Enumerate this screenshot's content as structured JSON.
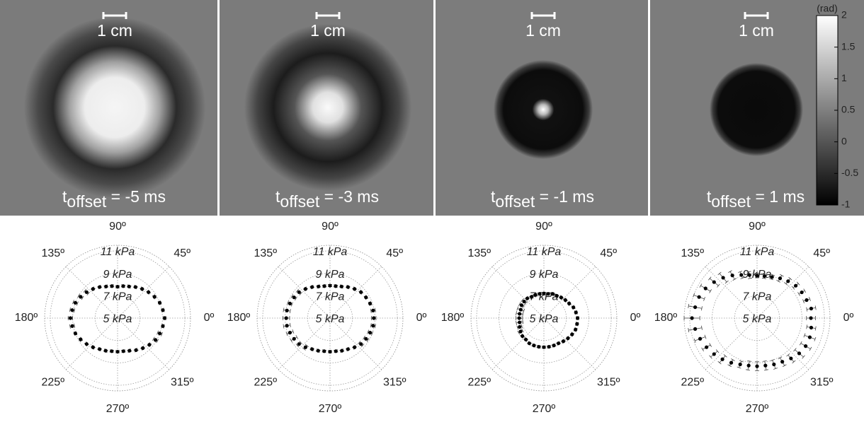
{
  "panels": [
    {
      "scale_bar": "1 cm",
      "offset_label": {
        "base": "t",
        "sub": "offset",
        "rest": " = -5 ms"
      }
    },
    {
      "scale_bar": "1 cm",
      "offset_label": {
        "base": "t",
        "sub": "offset",
        "rest": " = -3 ms"
      }
    },
    {
      "scale_bar": "1 cm",
      "offset_label": {
        "base": "t",
        "sub": "offset",
        "rest": " = -1 ms"
      }
    },
    {
      "scale_bar": "1 cm",
      "offset_label": {
        "base": "t",
        "sub": "offset",
        "rest": " = 1 ms"
      }
    }
  ],
  "colorbar": {
    "unit": "(rad)",
    "ylim": [
      -1,
      2
    ],
    "yticks": [
      2,
      1.5,
      1,
      0.5,
      0,
      -0.5,
      -1
    ]
  },
  "chart_data": [
    {
      "type": "polar",
      "rlim": [
        5,
        11.5
      ],
      "rticks": [
        {
          "value": 5,
          "label": "5 kPa"
        },
        {
          "value": 7,
          "label": "7 kPa"
        },
        {
          "value": 9,
          "label": "9 kPa"
        },
        {
          "value": 11,
          "label": "11 kPa"
        }
      ],
      "thetaticks": [
        {
          "value": 0,
          "label": "0º"
        },
        {
          "value": 45,
          "label": "45º"
        },
        {
          "value": 90,
          "label": "90º"
        },
        {
          "value": 135,
          "label": "135º"
        },
        {
          "value": 180,
          "label": "180º"
        },
        {
          "value": 225,
          "label": "225º"
        },
        {
          "value": 270,
          "label": "270º"
        },
        {
          "value": 315,
          "label": "315º"
        }
      ],
      "theta": [
        0,
        10,
        20,
        30,
        40,
        50,
        60,
        70,
        80,
        90,
        100,
        110,
        120,
        130,
        140,
        150,
        160,
        170,
        180,
        190,
        200,
        210,
        220,
        230,
        240,
        250,
        260,
        270,
        280,
        290,
        300,
        310,
        320,
        330,
        340,
        350
      ],
      "values": [
        9.2,
        9.1,
        9.0,
        8.8,
        8.6,
        8.4,
        8.2,
        8.0,
        7.9,
        7.8,
        7.9,
        8.0,
        8.2,
        8.4,
        8.6,
        8.8,
        9.0,
        9.1,
        9.2,
        9.1,
        9.0,
        8.8,
        8.6,
        8.4,
        8.2,
        8.1,
        8.0,
        8.0,
        8.0,
        8.1,
        8.3,
        8.5,
        8.7,
        8.9,
        9.0,
        9.1
      ],
      "errors": [
        0.1,
        0.1,
        0.1,
        0.1,
        0.1,
        0.1,
        0.1,
        0.1,
        0.1,
        0.1,
        0.1,
        0.1,
        0.1,
        0.1,
        0.2,
        0.2,
        0.2,
        0.2,
        0.2,
        0.2,
        0.1,
        0.1,
        0.1,
        0.1,
        0.1,
        0.1,
        0.1,
        0.1,
        0.1,
        0.1,
        0.1,
        0.1,
        0.1,
        0.2,
        0.2,
        0.1
      ],
      "color": "#000000"
    },
    {
      "type": "polar",
      "rlim": [
        5,
        11.5
      ],
      "rticks": [
        {
          "value": 5,
          "label": "5 kPa"
        },
        {
          "value": 7,
          "label": "7 kPa"
        },
        {
          "value": 9,
          "label": "9 kPa"
        },
        {
          "value": 11,
          "label": "11 kPa"
        }
      ],
      "thetaticks": [
        {
          "value": 0,
          "label": "0º"
        },
        {
          "value": 45,
          "label": "45º"
        },
        {
          "value": 90,
          "label": "90º"
        },
        {
          "value": 135,
          "label": "135º"
        },
        {
          "value": 180,
          "label": "180º"
        },
        {
          "value": 225,
          "label": "225º"
        },
        {
          "value": 270,
          "label": "270º"
        },
        {
          "value": 315,
          "label": "315º"
        }
      ],
      "theta": [
        0,
        10,
        20,
        30,
        40,
        50,
        60,
        70,
        80,
        90,
        100,
        110,
        120,
        130,
        140,
        150,
        160,
        170,
        180,
        190,
        200,
        210,
        220,
        230,
        240,
        250,
        260,
        270,
        280,
        290,
        300,
        310,
        320,
        330,
        340,
        350
      ],
      "values": [
        8.9,
        8.9,
        8.8,
        8.7,
        8.6,
        8.4,
        8.2,
        8.0,
        7.9,
        7.9,
        7.9,
        8.0,
        8.2,
        8.4,
        8.6,
        8.7,
        8.8,
        8.9,
        8.9,
        8.9,
        8.8,
        8.7,
        8.6,
        8.4,
        8.2,
        8.1,
        8.0,
        8.0,
        8.0,
        8.1,
        8.2,
        8.4,
        8.6,
        8.7,
        8.8,
        8.9
      ],
      "errors": [
        0.2,
        0.2,
        0.1,
        0.1,
        0.1,
        0.1,
        0.1,
        0.1,
        0.1,
        0.1,
        0.1,
        0.1,
        0.1,
        0.1,
        0.2,
        0.2,
        0.2,
        0.3,
        0.3,
        0.3,
        0.3,
        0.3,
        0.2,
        0.2,
        0.1,
        0.1,
        0.1,
        0.1,
        0.1,
        0.1,
        0.1,
        0.1,
        0.2,
        0.2,
        0.2,
        0.2
      ],
      "color": "#000000"
    },
    {
      "type": "polar",
      "rlim": [
        5,
        11.5
      ],
      "rticks": [
        {
          "value": 5,
          "label": "5 kPa"
        },
        {
          "value": 7,
          "label": "7 kPa"
        },
        {
          "value": 9,
          "label": "9 kPa"
        },
        {
          "value": 11,
          "label": "11 kPa"
        }
      ],
      "thetaticks": [
        {
          "value": 0,
          "label": "0º"
        },
        {
          "value": 45,
          "label": "45º"
        },
        {
          "value": 90,
          "label": "90º"
        },
        {
          "value": 135,
          "label": "135º"
        },
        {
          "value": 180,
          "label": "180º"
        },
        {
          "value": 225,
          "label": "225º"
        },
        {
          "value": 270,
          "label": "270º"
        },
        {
          "value": 315,
          "label": "315º"
        }
      ],
      "theta": [
        0,
        10,
        20,
        30,
        40,
        50,
        60,
        70,
        80,
        90,
        100,
        110,
        120,
        130,
        140,
        150,
        160,
        170,
        180,
        190,
        200,
        210,
        220,
        230,
        240,
        250,
        260,
        270,
        280,
        290,
        300,
        310,
        320,
        330,
        340,
        350
      ],
      "values": [
        8.0,
        7.9,
        7.8,
        7.6,
        7.5,
        7.4,
        7.3,
        7.3,
        7.2,
        7.2,
        7.2,
        7.2,
        7.2,
        7.3,
        7.3,
        7.3,
        7.2,
        7.2,
        7.2,
        7.2,
        7.3,
        7.4,
        7.5,
        7.5,
        7.6,
        7.6,
        7.6,
        7.6,
        7.6,
        7.6,
        7.6,
        7.7,
        7.8,
        7.9,
        8.0,
        8.0
      ],
      "errors": [
        0.1,
        0.1,
        0.1,
        0.1,
        0.1,
        0.1,
        0.1,
        0.1,
        0.1,
        0.1,
        0.1,
        0.1,
        0.1,
        0.1,
        0.2,
        0.2,
        0.3,
        0.3,
        0.3,
        0.3,
        0.2,
        0.2,
        0.1,
        0.1,
        0.1,
        0.1,
        0.1,
        0.1,
        0.1,
        0.1,
        0.1,
        0.1,
        0.1,
        0.1,
        0.1,
        0.1
      ],
      "color": "#000000"
    },
    {
      "type": "polar",
      "rlim": [
        5,
        11.5
      ],
      "rticks": [
        {
          "value": 5,
          "label": "5 kPa"
        },
        {
          "value": 7,
          "label": "7 kPa"
        },
        {
          "value": 9,
          "label": "9 kPa"
        },
        {
          "value": 11,
          "label": "11 kPa"
        }
      ],
      "thetaticks": [
        {
          "value": 0,
          "label": "0º"
        },
        {
          "value": 45,
          "label": "45º"
        },
        {
          "value": 90,
          "label": "90º"
        },
        {
          "value": 135,
          "label": "135º"
        },
        {
          "value": 180,
          "label": "180º"
        },
        {
          "value": 225,
          "label": "225º"
        },
        {
          "value": 270,
          "label": "270º"
        },
        {
          "value": 315,
          "label": "315º"
        }
      ],
      "theta": [
        0,
        10,
        20,
        30,
        40,
        50,
        60,
        70,
        80,
        90,
        100,
        110,
        120,
        130,
        140,
        150,
        160,
        170,
        180,
        190,
        200,
        210,
        220,
        230,
        240,
        250,
        260,
        270,
        280,
        290,
        300,
        310,
        320,
        330,
        340,
        350
      ],
      "values": [
        9.8,
        9.9,
        9.7,
        9.6,
        9.5,
        9.3,
        9.1,
        8.9,
        8.8,
        8.8,
        8.9,
        9.1,
        9.4,
        9.7,
        10.0,
        10.3,
        10.5,
        10.6,
        10.8,
        10.6,
        10.4,
        10.2,
        10.0,
        9.8,
        9.6,
        9.4,
        9.3,
        9.3,
        9.3,
        9.4,
        9.5,
        9.7,
        9.9,
        10.0,
        10.0,
        9.9
      ],
      "errors": [
        0.4,
        0.4,
        0.3,
        0.3,
        0.3,
        0.3,
        0.3,
        0.2,
        0.2,
        0.2,
        0.3,
        0.3,
        0.4,
        0.5,
        0.5,
        0.5,
        0.5,
        0.6,
        0.7,
        0.6,
        0.5,
        0.4,
        0.4,
        0.4,
        0.3,
        0.3,
        0.4,
        0.4,
        0.4,
        0.4,
        0.4,
        0.4,
        0.5,
        0.5,
        0.5,
        0.4
      ],
      "color": "#000000"
    }
  ]
}
